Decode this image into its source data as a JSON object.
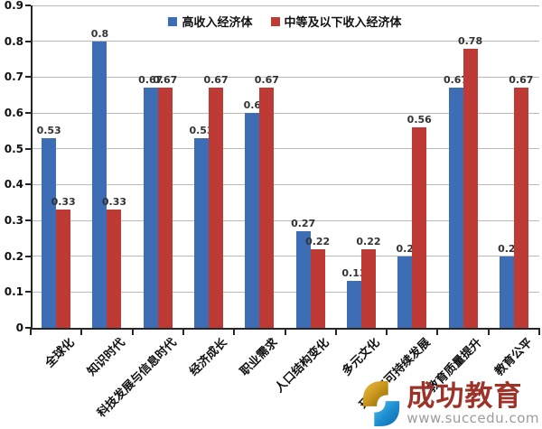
{
  "chart_data": {
    "type": "bar",
    "title": "",
    "categories": [
      "全球化",
      "知识时代",
      "科技发展与信息时代",
      "经济成长",
      "职业需求",
      "人口结构变化",
      "多元文化",
      "环境与可持续发展",
      "教育质量提升",
      "教育公平"
    ],
    "series": [
      {
        "name": "高收入经济体",
        "color": "#3c6db5",
        "values": [
          0.53,
          0.8,
          0.67,
          0.53,
          0.6,
          0.27,
          0.13,
          0.2,
          0.67,
          0.2
        ]
      },
      {
        "name": "中等及以下收入经济体",
        "color": "#be3a34",
        "values": [
          0.33,
          0.33,
          0.67,
          0.67,
          0.67,
          0.22,
          0.22,
          0.56,
          0.78,
          0.67
        ]
      }
    ],
    "ylim": [
      0,
      0.9
    ],
    "ytick_labels": [
      "0",
      "0.1",
      "0.2",
      "0.3",
      "0.4",
      "0.5",
      "0.6",
      "0.7",
      "0.8",
      "0.9"
    ],
    "grid": true,
    "legend_position": "top",
    "value_labels": true,
    "xlabel": "",
    "ylabel": ""
  },
  "colors": {
    "axis": "#262626",
    "gridline": "#b9b9b9",
    "value_label": "#333333"
  },
  "watermark": {
    "brand": "成功教育",
    "url": "www.succedu.com",
    "brand_color": "#9c3228",
    "logo_gold_light": "#e2b32c",
    "logo_gold_dark": "#8a6208",
    "logo_blue_light": "#41b3e8",
    "logo_blue_dark": "#0d68aa"
  }
}
